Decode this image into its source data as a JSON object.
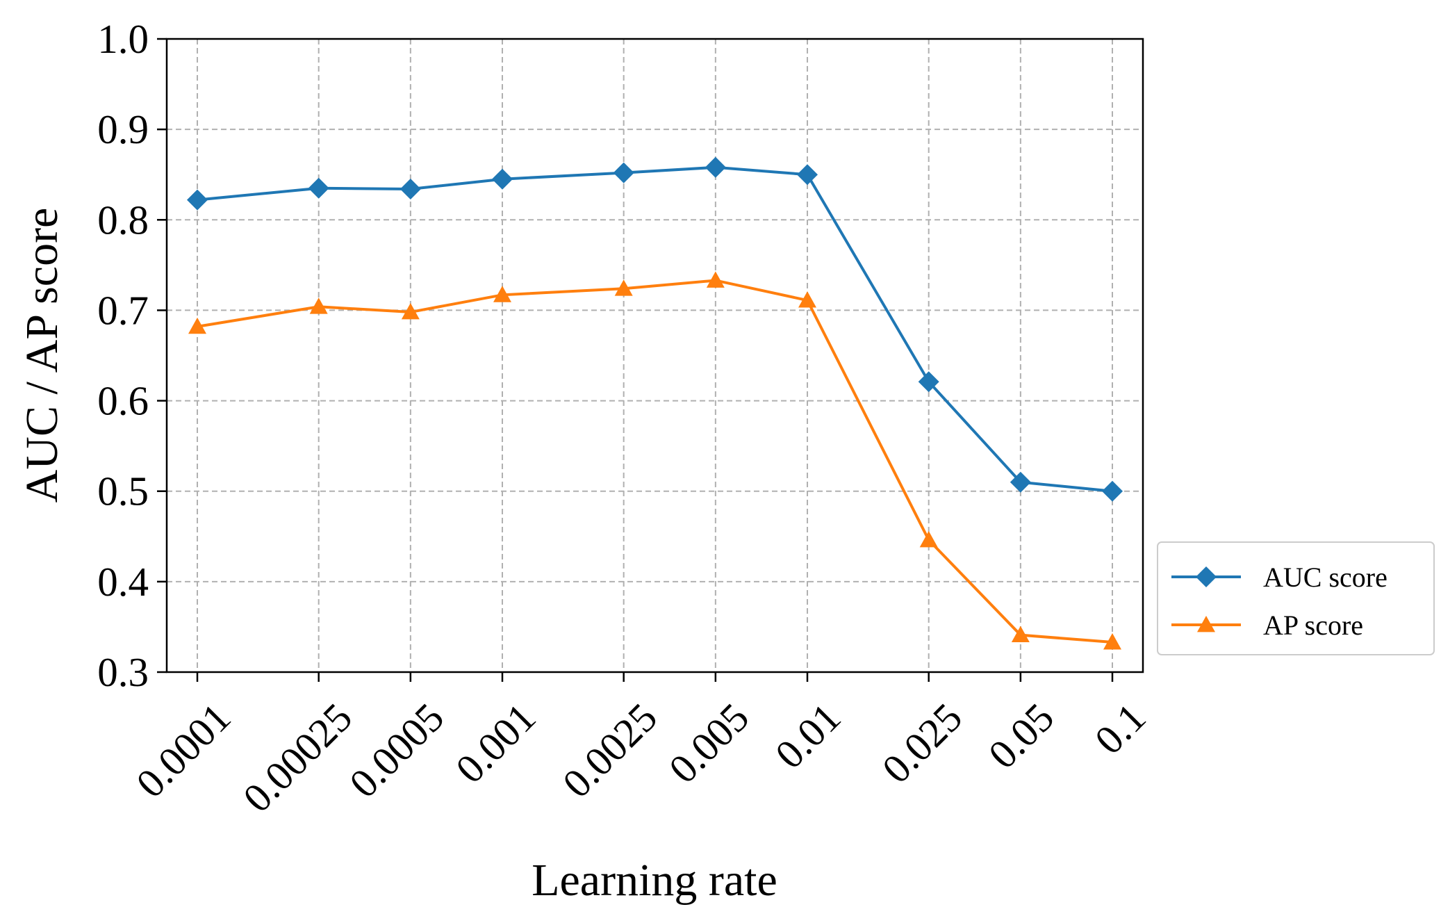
{
  "chart_data": {
    "type": "line",
    "title": "",
    "xlabel": "Learning rate",
    "ylabel": "AUC / AP score",
    "categories": [
      "0.0001",
      "0.00025",
      "0.0005",
      "0.001",
      "0.0025",
      "0.005",
      "0.01",
      "0.025",
      "0.05",
      "0.1"
    ],
    "x": [
      0.0001,
      0.00025,
      0.0005,
      0.001,
      0.0025,
      0.005,
      0.01,
      0.025,
      0.05,
      0.1
    ],
    "x_scale": "log",
    "ylim": [
      0.3,
      1.0
    ],
    "yticks": [
      "0.3",
      "0.4",
      "0.5",
      "0.6",
      "0.7",
      "0.8",
      "0.9",
      "1.0"
    ],
    "grid": true,
    "legend_position": "outside-right",
    "series": [
      {
        "name": "AUC score",
        "color": "#1f77b4",
        "marker": "diamond",
        "values": [
          0.822,
          0.835,
          0.834,
          0.845,
          0.852,
          0.858,
          0.85,
          0.621,
          0.51,
          0.5
        ]
      },
      {
        "name": "AP score",
        "color": "#ff7f0e",
        "marker": "triangle",
        "values": [
          0.682,
          0.704,
          0.698,
          0.717,
          0.724,
          0.733,
          0.711,
          0.446,
          0.341,
          0.333
        ]
      }
    ]
  }
}
